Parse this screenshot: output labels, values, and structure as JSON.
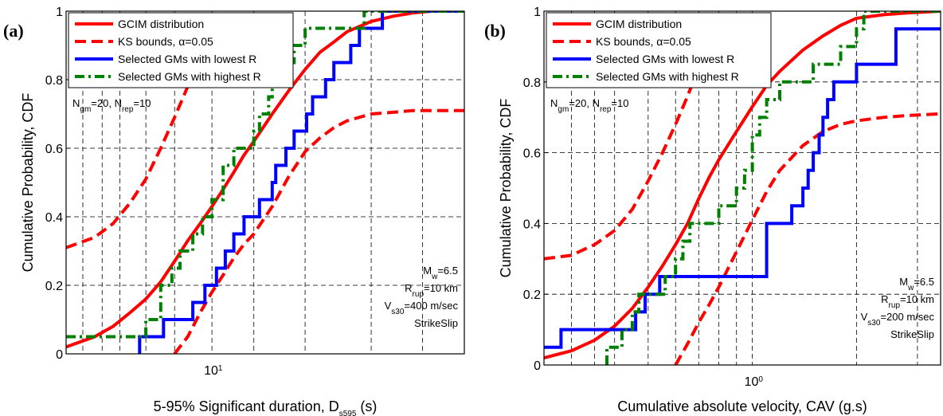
{
  "chart_data": [
    {
      "type": "line",
      "panel_label": "(a)",
      "xlabel": "5-95% Significant duration, D",
      "xlabel_sub": "s595",
      "xlabel_suffix": " (s)",
      "ylabel": "Cumulative  Probability,  CDF",
      "xscale": "log",
      "xlim": [
        5.3,
        30
      ],
      "ylim": [
        0,
        1
      ],
      "x_tick_labels": [
        {
          "x": 10,
          "base": "10",
          "exp": "1"
        }
      ],
      "y_ticks": [
        0,
        0.2,
        0.4,
        0.6,
        0.8,
        1
      ],
      "y_tick_labels": [
        "0",
        "0.2",
        "0.4",
        "0.6",
        "0.8",
        "1"
      ],
      "grid": true,
      "legend_position": "top-left",
      "annot_top": {
        "n_gm_value": "=20, N",
        "n_rep_value": "=10",
        "n_gm_sub": "gm",
        "n_rep_sub": "rep",
        "prefix": "N"
      },
      "annot_bottom": {
        "mw": {
          "pre": "M",
          "sub": "w",
          "post": "=6.5"
        },
        "rrup": {
          "pre": "R",
          "sub": "rup",
          "post": "=10 km"
        },
        "vs30": {
          "pre": "V",
          "sub": "s30",
          "post": "=400 m/sec"
        },
        "mech": "StrikeSlip"
      },
      "series": [
        {
          "name": "GCIM distribution",
          "color": "#ff0000",
          "style": "solid",
          "x": [
            5.3,
            6,
            6.5,
            7,
            7.5,
            8,
            8.5,
            9,
            9.5,
            10,
            10.5,
            11,
            11.5,
            12,
            13,
            14,
            15,
            16,
            17,
            18,
            20,
            22,
            24,
            26,
            30
          ],
          "y": [
            0.02,
            0.05,
            0.08,
            0.12,
            0.16,
            0.21,
            0.27,
            0.33,
            0.38,
            0.43,
            0.48,
            0.53,
            0.58,
            0.62,
            0.7,
            0.77,
            0.83,
            0.88,
            0.91,
            0.94,
            0.97,
            0.985,
            0.995,
            1.0,
            1.0
          ]
        },
        {
          "name": "KS bounds, α=0.05",
          "color": "#ff0000",
          "style": "dashed",
          "x": [
            5.3,
            6,
            6.5,
            7,
            7.5,
            8,
            8.5,
            9
          ],
          "y": [
            0.31,
            0.34,
            0.38,
            0.44,
            0.51,
            0.6,
            0.69,
            0.78
          ]
        },
        {
          "name": "",
          "color": "#ff0000",
          "style": "dashed",
          "x": [
            8.5,
            9,
            9.5,
            10,
            10.5,
            11,
            11.5,
            12,
            13,
            14,
            15,
            16,
            17,
            18,
            20,
            22,
            24,
            26,
            30
          ],
          "y": [
            0.0,
            0.05,
            0.12,
            0.18,
            0.23,
            0.28,
            0.32,
            0.35,
            0.43,
            0.52,
            0.59,
            0.63,
            0.66,
            0.68,
            0.7,
            0.705,
            0.71,
            0.71,
            0.71
          ]
        },
        {
          "name": "Selected GMs with lowest R",
          "color": "#0000ff",
          "style": "solid",
          "step": true,
          "x": [
            7.3,
            7.3,
            8.1,
            8.1,
            9.2,
            9.2,
            9.7,
            9.7,
            10.2,
            10.2,
            10.6,
            10.6,
            11.0,
            11.0,
            11.5,
            11.5,
            12.3,
            12.3,
            13.0,
            13.0,
            13.2,
            13.2,
            13.8,
            13.8,
            14.3,
            14.3,
            15.1,
            15.1,
            15.5,
            15.5,
            16.4,
            16.4,
            17.0,
            17.0,
            18.3,
            18.3,
            19.0,
            19.0,
            20.0,
            20.0,
            21.0,
            21.0,
            30
          ],
          "y": [
            0.0,
            0.05,
            0.05,
            0.1,
            0.1,
            0.15,
            0.15,
            0.2,
            0.2,
            0.25,
            0.25,
            0.3,
            0.3,
            0.35,
            0.35,
            0.4,
            0.4,
            0.45,
            0.45,
            0.5,
            0.5,
            0.55,
            0.55,
            0.6,
            0.6,
            0.65,
            0.65,
            0.7,
            0.7,
            0.75,
            0.75,
            0.8,
            0.8,
            0.85,
            0.85,
            0.9,
            0.9,
            0.95,
            0.95,
            0.95,
            0.95,
            1.0,
            1.0
          ]
        },
        {
          "name": "Selected GMs with highest R",
          "color": "#008000",
          "style": "dashdot",
          "step": true,
          "x": [
            5.3,
            5.6,
            5.6,
            7.5,
            7.5,
            8.0,
            8.0,
            8.4,
            8.4,
            8.7,
            8.7,
            9.2,
            9.2,
            9.6,
            9.6,
            10.0,
            10.0,
            10.5,
            10.5,
            11.0,
            11.0,
            12.0,
            12.0,
            12.3,
            12.3,
            12.8,
            12.8,
            13.0,
            13.0,
            13.4,
            13.4,
            14.3,
            14.3,
            15.0,
            15.0,
            16.2,
            16.2,
            17.4,
            17.4,
            19.4,
            19.4,
            30
          ],
          "y": [
            0.05,
            0.05,
            0.05,
            0.05,
            0.1,
            0.1,
            0.2,
            0.2,
            0.25,
            0.25,
            0.3,
            0.3,
            0.35,
            0.35,
            0.4,
            0.4,
            0.45,
            0.45,
            0.55,
            0.55,
            0.6,
            0.6,
            0.65,
            0.65,
            0.7,
            0.7,
            0.75,
            0.75,
            0.8,
            0.8,
            0.85,
            0.85,
            0.9,
            0.9,
            0.95,
            0.95,
            0.95,
            0.95,
            0.95,
            0.95,
            1.0,
            1.0
          ]
        }
      ]
    },
    {
      "type": "line",
      "panel_label": "(b)",
      "xlabel": "Cumulative absolute velocity, CAV (g.s)",
      "ylabel": "Cumulative  Probability,  CDF",
      "xscale": "log",
      "xlim": [
        0.25,
        3.5
      ],
      "ylim": [
        0,
        1
      ],
      "x_tick_labels": [
        {
          "x": 1,
          "base": "10",
          "exp": "0"
        }
      ],
      "y_ticks": [
        0,
        0.2,
        0.4,
        0.6,
        0.8,
        1
      ],
      "y_tick_labels": [
        "0",
        "0.2",
        "0.4",
        "0.6",
        "0.8",
        "1"
      ],
      "grid": true,
      "legend_position": "top-left",
      "annot_top": {
        "n_gm_value": "=20, N",
        "n_rep_value": "=10",
        "n_gm_sub": "gm",
        "n_rep_sub": "rep",
        "prefix": "N"
      },
      "annot_bottom": {
        "mw": {
          "pre": "M",
          "sub": "w",
          "post": "=6.5"
        },
        "rrup": {
          "pre": "R",
          "sub": "rup",
          "post": "=10 km"
        },
        "vs30": {
          "pre": "V",
          "sub": "s30",
          "post": "=200 m/sec"
        },
        "mech": "StrikeSlip"
      },
      "series": [
        {
          "name": "GCIM distribution",
          "color": "#ff0000",
          "style": "solid",
          "x": [
            0.25,
            0.3,
            0.35,
            0.4,
            0.45,
            0.5,
            0.55,
            0.6,
            0.65,
            0.7,
            0.75,
            0.8,
            0.9,
            1.0,
            1.1,
            1.2,
            1.4,
            1.6,
            1.8,
            2.0,
            2.4,
            2.8,
            3.5
          ],
          "y": [
            0.02,
            0.04,
            0.07,
            0.11,
            0.16,
            0.22,
            0.28,
            0.34,
            0.4,
            0.47,
            0.53,
            0.58,
            0.66,
            0.73,
            0.79,
            0.83,
            0.89,
            0.93,
            0.96,
            0.98,
            0.99,
            0.995,
            1.0
          ]
        },
        {
          "name": "KS bounds, α=0.05",
          "color": "#ff0000",
          "style": "dashed",
          "x": [
            0.25,
            0.3,
            0.35,
            0.4,
            0.45,
            0.5,
            0.55,
            0.6,
            0.65,
            0.7
          ],
          "y": [
            0.3,
            0.31,
            0.34,
            0.38,
            0.44,
            0.52,
            0.6,
            0.68,
            0.76,
            0.84
          ]
        },
        {
          "name": "",
          "color": "#ff0000",
          "style": "dashed",
          "x": [
            0.6,
            0.65,
            0.7,
            0.75,
            0.8,
            0.9,
            1.0,
            1.1,
            1.2,
            1.4,
            1.6,
            1.8,
            2.0,
            2.4,
            2.8,
            3.5
          ],
          "y": [
            0.0,
            0.06,
            0.12,
            0.17,
            0.22,
            0.32,
            0.41,
            0.49,
            0.55,
            0.62,
            0.66,
            0.68,
            0.69,
            0.7,
            0.705,
            0.71
          ]
        },
        {
          "name": "Selected GMs with lowest R",
          "color": "#0000ff",
          "style": "solid",
          "step": true,
          "x": [
            0.25,
            0.28,
            0.28,
            0.46,
            0.46,
            0.49,
            0.49,
            0.54,
            0.54,
            1.1,
            1.1,
            1.3,
            1.3,
            1.4,
            1.4,
            1.45,
            1.45,
            1.5,
            1.5,
            1.56,
            1.56,
            1.6,
            1.6,
            1.65,
            1.65,
            1.72,
            1.72,
            2.0,
            2.0,
            2.6,
            2.6,
            3.5
          ],
          "y": [
            0.05,
            0.05,
            0.1,
            0.1,
            0.15,
            0.15,
            0.2,
            0.2,
            0.25,
            0.25,
            0.4,
            0.4,
            0.45,
            0.45,
            0.5,
            0.5,
            0.55,
            0.55,
            0.6,
            0.6,
            0.65,
            0.65,
            0.7,
            0.7,
            0.75,
            0.75,
            0.8,
            0.8,
            0.85,
            0.85,
            0.95,
            0.95
          ]
        },
        {
          "name": "Selected GMs with highest R",
          "color": "#008000",
          "style": "dashdot",
          "step": true,
          "x": [
            0.38,
            0.38,
            0.42,
            0.42,
            0.45,
            0.45,
            0.47,
            0.47,
            0.56,
            0.56,
            0.6,
            0.6,
            0.63,
            0.63,
            0.66,
            0.66,
            0.7,
            0.7,
            0.8,
            0.8,
            0.9,
            0.9,
            0.95,
            0.95,
            1.0,
            1.0,
            1.05,
            1.05,
            1.1,
            1.1,
            1.15,
            1.15,
            1.2,
            1.2,
            1.5,
            1.5,
            1.8,
            1.8,
            2.0,
            2.0,
            2.1,
            2.1,
            3.5
          ],
          "y": [
            0.0,
            0.05,
            0.05,
            0.1,
            0.1,
            0.15,
            0.15,
            0.2,
            0.2,
            0.25,
            0.25,
            0.3,
            0.3,
            0.35,
            0.35,
            0.4,
            0.4,
            0.4,
            0.4,
            0.45,
            0.45,
            0.5,
            0.5,
            0.55,
            0.55,
            0.65,
            0.65,
            0.7,
            0.7,
            0.75,
            0.75,
            0.75,
            0.75,
            0.8,
            0.8,
            0.85,
            0.85,
            0.9,
            0.9,
            0.95,
            0.95,
            1.0,
            1.0
          ]
        }
      ]
    }
  ]
}
